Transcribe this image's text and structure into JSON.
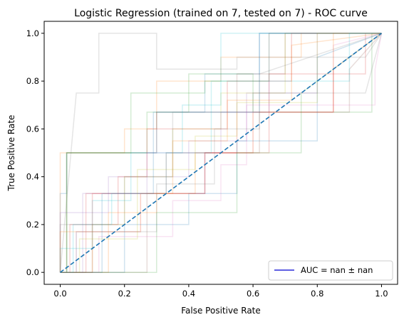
{
  "chart_data": {
    "type": "line",
    "title": "Logistic Regression (trained on 7, tested on 7) -  ROC curve",
    "xlabel": "False Positive Rate",
    "ylabel": "True Positive Rate",
    "xlim": [
      -0.05,
      1.05
    ],
    "ylim": [
      -0.05,
      1.05
    ],
    "xticks": [
      0.0,
      0.2,
      0.4,
      0.6,
      0.8,
      1.0
    ],
    "xtick_labels": [
      "0.0",
      "0.2",
      "0.4",
      "0.6",
      "0.8",
      "1.0"
    ],
    "yticks": [
      0.0,
      0.2,
      0.4,
      0.6,
      0.8,
      1.0
    ],
    "ytick_labels": [
      "0.0",
      "0.2",
      "0.4",
      "0.6",
      "0.8",
      "1.0"
    ],
    "grid": false,
    "legend": {
      "placement": "lower-right",
      "entries": [
        {
          "label": "AUC = nan ± nan",
          "color": "#2b2bd9"
        }
      ]
    },
    "diagonal": {
      "x": [
        0,
        1
      ],
      "y": [
        0,
        1
      ],
      "color": "#1f77b4",
      "style": "dashed"
    },
    "series": [
      {
        "color": "#1f77b4",
        "x": [
          0,
          0,
          0.02,
          0.02,
          0.3,
          0.3,
          0.45,
          0.45,
          0.62,
          0.62,
          1
        ],
        "y": [
          0,
          0.33,
          0.33,
          0.5,
          0.5,
          0.67,
          0.67,
          0.83,
          0.83,
          1,
          1
        ]
      },
      {
        "color": "#ff7f0e",
        "x": [
          0,
          0,
          0.2,
          0.2,
          0.3,
          0.3,
          0.5,
          0.5,
          0.75,
          0.75,
          1
        ],
        "y": [
          0,
          0.5,
          0.5,
          0.6,
          0.6,
          0.8,
          0.8,
          0.9,
          0.9,
          1,
          1
        ]
      },
      {
        "color": "#2ca02c",
        "x": [
          0,
          0.02,
          0.02,
          0.27,
          0.27,
          0.4,
          0.4,
          0.6,
          0.6,
          0.97,
          0.97,
          1
        ],
        "y": [
          0,
          0,
          0.5,
          0.5,
          0.67,
          0.67,
          0.83,
          0.83,
          0.67,
          0.67,
          1,
          1
        ]
      },
      {
        "color": "#d62728",
        "x": [
          0,
          0.08,
          0.08,
          0.33,
          0.33,
          0.55,
          0.55,
          0.65,
          0.65,
          0.95,
          0.95,
          1
        ],
        "y": [
          0,
          0,
          0.33,
          0.33,
          0.5,
          0.5,
          0.67,
          0.67,
          0.83,
          0.83,
          1,
          1
        ]
      },
      {
        "color": "#9467bd",
        "x": [
          0,
          0,
          0.15,
          0.15,
          0.4,
          0.4,
          0.58,
          0.58,
          0.8,
          0.8,
          1
        ],
        "y": [
          0,
          0.25,
          0.25,
          0.4,
          0.4,
          0.55,
          0.55,
          0.75,
          0.75,
          1,
          1
        ]
      },
      {
        "color": "#8c564b",
        "x": [
          0,
          0.02,
          0.02,
          0.3,
          0.3,
          0.55,
          0.55,
          0.7,
          0.7,
          1
        ],
        "y": [
          0,
          0,
          0.5,
          0.5,
          0.67,
          0.67,
          0.83,
          0.83,
          1,
          1
        ]
      },
      {
        "color": "#e377c2",
        "x": [
          0,
          0.05,
          0.05,
          0.25,
          0.25,
          0.45,
          0.45,
          0.6,
          0.6,
          0.85,
          0.85,
          1
        ],
        "y": [
          0,
          0,
          0.17,
          0.17,
          0.33,
          0.33,
          0.5,
          0.5,
          0.67,
          0.67,
          0.95,
          1
        ]
      },
      {
        "color": "#7f7f7f",
        "x": [
          0,
          0.05,
          0.12,
          0.12,
          0.3,
          0.3,
          0.55,
          0.55,
          0.95,
          1
        ],
        "y": [
          0,
          0.75,
          0.75,
          1,
          1,
          0.85,
          0.85,
          0.9,
          0.9,
          1
        ]
      },
      {
        "color": "#bcbd22",
        "x": [
          0,
          0.1,
          0.1,
          0.2,
          0.2,
          0.35,
          0.35,
          0.5,
          0.5,
          0.7,
          0.7,
          1
        ],
        "y": [
          0,
          0,
          0.2,
          0.2,
          0.4,
          0.4,
          0.6,
          0.6,
          0.75,
          0.75,
          1,
          1
        ]
      },
      {
        "color": "#17becf",
        "x": [
          0,
          0,
          0.1,
          0.1,
          0.22,
          0.22,
          0.38,
          0.38,
          0.5,
          0.5,
          1
        ],
        "y": [
          0,
          0.1,
          0.1,
          0.3,
          0.3,
          0.5,
          0.5,
          0.7,
          0.7,
          1,
          1
        ]
      },
      {
        "color": "#1f77b4",
        "x": [
          0,
          0.2,
          0.2,
          0.4,
          0.4,
          0.55,
          0.55,
          0.8,
          0.8,
          1
        ],
        "y": [
          0,
          0,
          0.2,
          0.2,
          0.33,
          0.33,
          0.55,
          0.55,
          0.9,
          1
        ]
      },
      {
        "color": "#ff7f0e",
        "x": [
          0,
          0.15,
          0.15,
          0.3,
          0.3,
          0.42,
          0.42,
          0.6,
          0.6,
          0.85,
          0.85,
          1
        ],
        "y": [
          0,
          0,
          0.25,
          0.25,
          0.33,
          0.33,
          0.5,
          0.5,
          0.67,
          0.67,
          1,
          1
        ]
      },
      {
        "color": "#2ca02c",
        "x": [
          0,
          0.02,
          0.02,
          0.22,
          0.22,
          0.45,
          0.45,
          0.65,
          0.65,
          1
        ],
        "y": [
          0,
          0,
          0.5,
          0.5,
          0.75,
          0.75,
          0.8,
          0.8,
          1,
          1
        ]
      },
      {
        "color": "#d62728",
        "x": [
          0,
          0.03,
          0.03,
          0.18,
          0.18,
          0.27,
          0.27,
          0.52,
          0.52,
          0.72,
          0.72,
          1
        ],
        "y": [
          0,
          0,
          0.2,
          0.2,
          0.4,
          0.4,
          0.6,
          0.6,
          0.8,
          0.8,
          1,
          1
        ]
      },
      {
        "color": "#9467bd",
        "x": [
          0,
          0.07,
          0.07,
          0.27,
          0.27,
          0.5,
          0.5,
          0.65,
          0.65,
          1
        ],
        "y": [
          0,
          0,
          0.33,
          0.33,
          0.5,
          0.5,
          0.67,
          0.67,
          1,
          1
        ]
      },
      {
        "color": "#8c564b",
        "x": [
          0,
          0.27,
          0.27,
          0.45,
          0.45,
          0.62,
          0.62,
          0.9,
          0.9,
          1
        ],
        "y": [
          0,
          0,
          0.33,
          0.33,
          0.5,
          0.5,
          0.67,
          0.67,
          0.85,
          1
        ]
      },
      {
        "color": "#e377c2",
        "x": [
          0,
          0.12,
          0.12,
          0.35,
          0.35,
          0.5,
          0.5,
          0.58,
          0.58,
          0.98,
          0.98,
          1
        ],
        "y": [
          0,
          0,
          0.15,
          0.15,
          0.3,
          0.3,
          0.45,
          0.45,
          0.7,
          0.7,
          0.85,
          1
        ]
      },
      {
        "color": "#7f7f7f",
        "x": [
          0,
          0,
          0.2,
          0.2,
          0.35,
          0.35,
          0.6,
          0.6,
          0.95,
          1
        ],
        "y": [
          0,
          0.2,
          0.2,
          0.4,
          0.4,
          0.67,
          0.67,
          0.75,
          0.75,
          1
        ]
      },
      {
        "color": "#bcbd22",
        "x": [
          0,
          0.06,
          0.06,
          0.24,
          0.24,
          0.42,
          0.42,
          0.55,
          0.55,
          0.8,
          0.8,
          1
        ],
        "y": [
          0,
          0,
          0.14,
          0.14,
          0.43,
          0.43,
          0.57,
          0.57,
          0.71,
          0.71,
          1,
          1
        ]
      },
      {
        "color": "#17becf",
        "x": [
          0,
          0.04,
          0.04,
          0.16,
          0.16,
          0.33,
          0.33,
          0.47,
          0.47,
          0.9,
          0.9,
          1
        ],
        "y": [
          0,
          0,
          0.2,
          0.2,
          0.33,
          0.33,
          0.5,
          0.5,
          0.8,
          0.8,
          1,
          1
        ]
      },
      {
        "color": "#d62728",
        "x": [
          0,
          0.1,
          0.1,
          0.45,
          0.45,
          0.65,
          0.65,
          0.85,
          0.85,
          1
        ],
        "y": [
          0,
          0,
          0.33,
          0.33,
          0.5,
          0.5,
          0.67,
          0.67,
          0.85,
          1
        ]
      },
      {
        "color": "#ff7f0e",
        "x": [
          0,
          0,
          0.25,
          0.25,
          0.35,
          0.35,
          0.52,
          0.52,
          0.72,
          0.72,
          1
        ],
        "y": [
          0,
          0.17,
          0.17,
          0.33,
          0.33,
          0.55,
          0.55,
          0.72,
          0.72,
          0.95,
          1
        ]
      },
      {
        "color": "#1f77b4",
        "x": [
          0,
          0.13,
          0.13,
          0.29,
          0.29,
          0.62,
          0.62,
          1
        ],
        "y": [
          0,
          0,
          0.33,
          0.33,
          0.67,
          0.67,
          1,
          1
        ]
      },
      {
        "color": "#2ca02c",
        "x": [
          0,
          0.3,
          0.3,
          0.55,
          0.55,
          0.75,
          0.75,
          1
        ],
        "y": [
          0,
          0,
          0.25,
          0.25,
          0.5,
          0.5,
          0.75,
          1
        ]
      },
      {
        "color": "#7f7f7f",
        "x": [
          0,
          0.05,
          0.05,
          0.3,
          0.3,
          0.48,
          0.48,
          0.62,
          0.62,
          1
        ],
        "y": [
          0,
          0,
          0.17,
          0.17,
          0.37,
          0.37,
          0.6,
          0.6,
          0.83,
          1
        ]
      }
    ]
  }
}
